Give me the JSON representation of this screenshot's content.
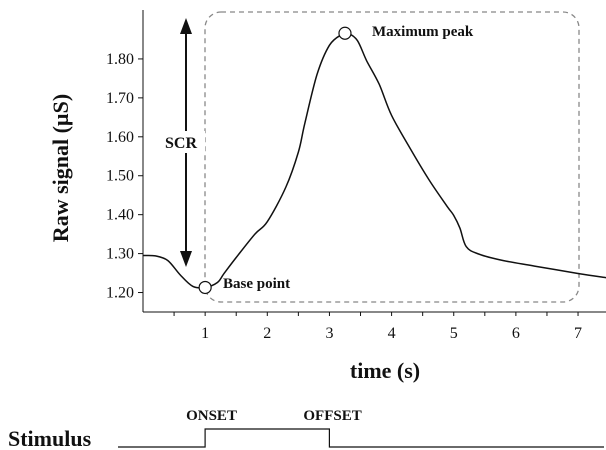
{
  "chart_data": {
    "type": "line",
    "title": "",
    "xlabel": "time (s)",
    "ylabel": "Raw signal (µS)",
    "xlim": [
      0,
      7.45
    ],
    "ylim": [
      1.15,
      1.9
    ],
    "x_ticks": [
      "1",
      "2",
      "3",
      "4",
      "5",
      "6",
      "7"
    ],
    "y_ticks": [
      "1.20",
      "1.30",
      "1.40",
      "1.50",
      "1.60",
      "1.70",
      "1.80"
    ],
    "grid": false,
    "series": [
      {
        "x": [
          0,
          0.2,
          0.4,
          0.6,
          0.8,
          1.0,
          1.2,
          1.3,
          1.5,
          1.8,
          2.0,
          2.3,
          2.5,
          2.6,
          2.8,
          3.0,
          3.2,
          3.3,
          3.45,
          3.6,
          3.8,
          4.0,
          4.3,
          4.6,
          4.9,
          5.0,
          5.1,
          5.2,
          5.4,
          5.8,
          6.3,
          7.0,
          7.45
        ],
        "y": [
          1.295,
          1.294,
          1.282,
          1.245,
          1.216,
          1.213,
          1.226,
          1.248,
          1.29,
          1.35,
          1.382,
          1.471,
          1.561,
          1.632,
          1.76,
          1.835,
          1.863,
          1.866,
          1.847,
          1.795,
          1.735,
          1.655,
          1.57,
          1.49,
          1.42,
          1.398,
          1.365,
          1.318,
          1.299,
          1.282,
          1.268,
          1.249,
          1.238
        ]
      }
    ],
    "annotations": {
      "scr": "SCR",
      "max_peak": "Maximum peak",
      "base_point": "Base point"
    },
    "markers": {
      "max_peak": {
        "x": 3.25,
        "y": 1.866
      },
      "base_point": {
        "x": 1.0,
        "y": 1.213
      }
    },
    "stimulus": {
      "label": "Stimulus",
      "onset_label": "ONSET",
      "offset_label": "OFFSET",
      "onset_x": 1.0,
      "offset_x": 3.0
    }
  }
}
